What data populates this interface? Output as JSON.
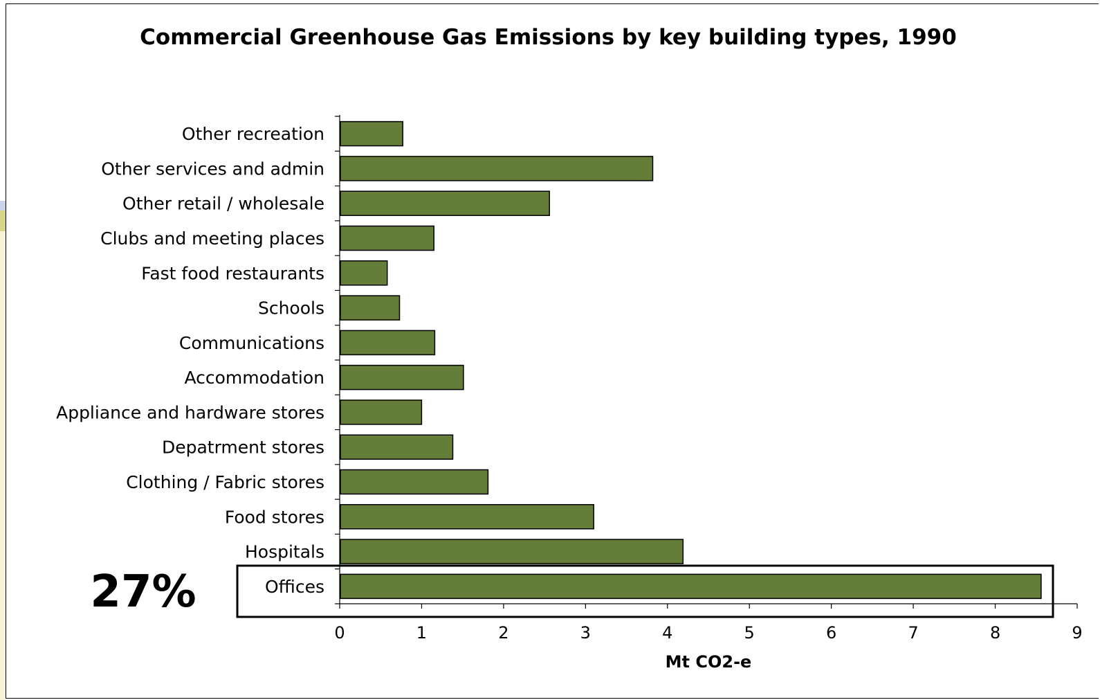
{
  "chart_data": {
    "type": "bar",
    "orientation": "horizontal",
    "title": "Commercial Greenhouse Gas Emissions by key building types, 1990",
    "xlabel": "Mt CO2-e",
    "ylabel": "",
    "xlim": [
      0,
      9
    ],
    "ticks": [
      "0",
      "1",
      "2",
      "3",
      "4",
      "5",
      "6",
      "7",
      "8",
      "9"
    ],
    "categories": [
      "Other recreation",
      "Other services and admin",
      "Other retail / wholesale",
      "Clubs and meeting places",
      "Fast food restaurants",
      "Schools",
      "Communications",
      "Accommodation",
      "Appliance and hardware stores",
      "Depatrment stores",
      "Clothing / Fabric stores",
      "Food stores",
      "Hospitals",
      "Offices"
    ],
    "values": [
      0.77,
      3.82,
      2.56,
      1.15,
      0.58,
      0.73,
      1.16,
      1.51,
      1.0,
      1.38,
      1.81,
      3.1,
      4.19,
      8.56
    ],
    "bar_color": "#647d38",
    "grid": false,
    "annotation": {
      "text": "27%",
      "target": "Offices"
    }
  }
}
